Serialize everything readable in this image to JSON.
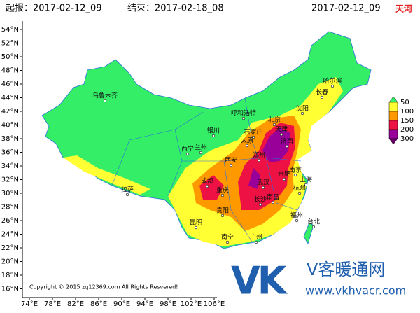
{
  "header": {
    "start": "起报：2017-02-12_09",
    "end": "结束：2017-02-18_08",
    "valid": "2017-02-12_09",
    "model": "天河"
  },
  "map": {
    "lat_labels": [
      "54°N",
      "52°N",
      "50°N",
      "48°N",
      "46°N",
      "44°N",
      "42°N",
      "40°N",
      "38°N",
      "36°N",
      "34°N",
      "32°N",
      "30°N",
      "28°N",
      "26°N",
      "24°N",
      "22°N",
      "20°N",
      "18°N",
      "16°N"
    ],
    "lon_labels": [
      "74°E",
      "78°E",
      "82°E",
      "86°E",
      "90°E",
      "94°E",
      "98°E",
      "102°E",
      "106°E"
    ],
    "cities": [
      "乌鲁木齐",
      "哈尔滨",
      "长春",
      "沈阳",
      "呼和浩特",
      "北京",
      "天津",
      "石家庄",
      "银川",
      "太原",
      "济南",
      "兰州",
      "西宁",
      "郑州",
      "西安",
      "南京",
      "合肥",
      "上海",
      "武汉",
      "成都",
      "重庆",
      "杭州",
      "长沙",
      "南昌",
      "拉萨",
      "贵阳",
      "福州",
      "昆明",
      "台北",
      "南宁",
      "广州"
    ],
    "copyright": "Copyright © 2015 zq12369.com All Rights Resvered!"
  },
  "legend": {
    "ticks": [
      50,
      100,
      150,
      200,
      300
    ],
    "colors": [
      "#33ee66",
      "#ffff33",
      "#ff9900",
      "#ee1144",
      "#990099",
      "#660066"
    ]
  },
  "logo": {
    "mark": "VK",
    "name": "V客暖通网",
    "url": "www.vkhvacr.com"
  }
}
